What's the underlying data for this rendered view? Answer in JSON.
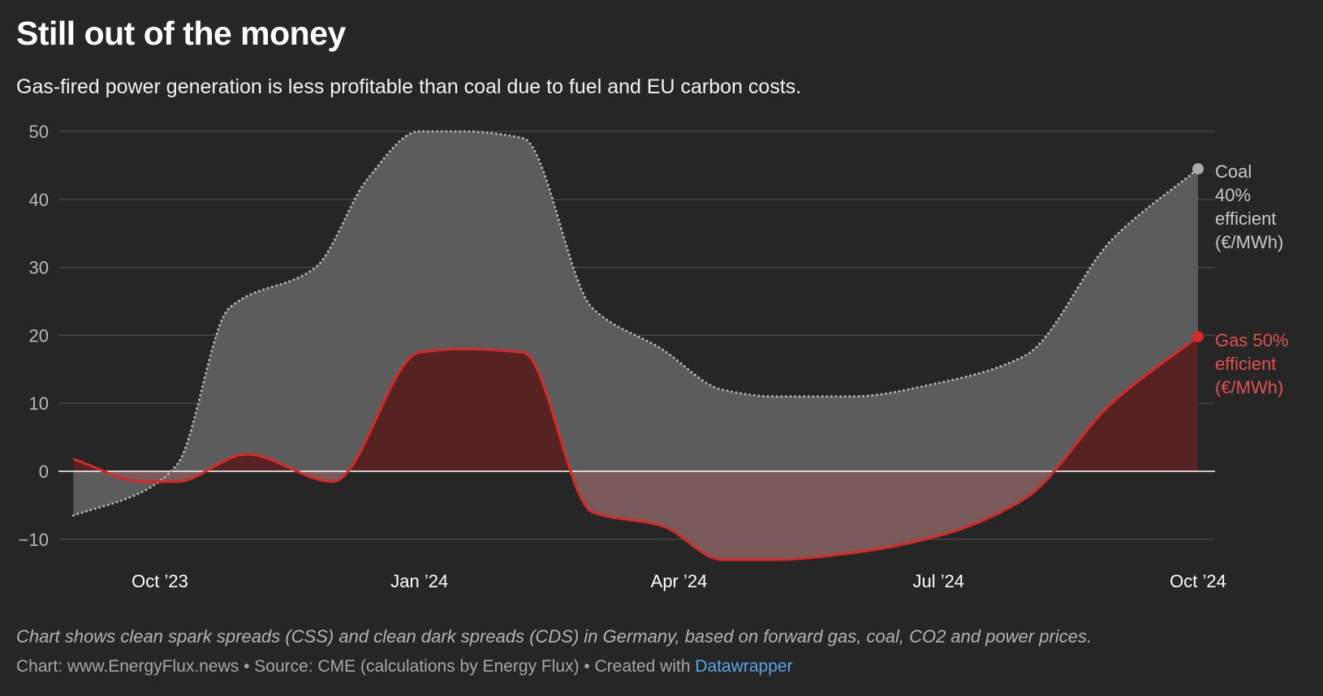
{
  "header": {
    "title": "Still out of the money",
    "subtitle": "Gas-fired power generation is less profitable than coal due to fuel and EU carbon costs."
  },
  "footer": {
    "notes": "Chart shows clean spark spreads (CSS) and clean dark spreads (CDS) in Germany, based on forward gas, coal, CO2 and power prices.",
    "byline_prefix": "Chart: www.EnergyFlux.news • Source: CME (calculations by Energy Flux) • Created with ",
    "byline_link": "Datawrapper"
  },
  "colors": {
    "background": "#262626",
    "coal_fill": "#5c5c5c",
    "coal_line": "#b0b0b0",
    "gas_line": "#d42a2a",
    "gas_fill_positive": "#562222",
    "gas_fill_negative": "#7a5a5a",
    "gas_label": "#e05050",
    "coal_label": "#c8c8c8",
    "gridline": "#4a4a4a",
    "zero_line": "#ffffff",
    "axis_text": "#b8b8b8"
  },
  "chart_data": {
    "type": "area",
    "title": "Still out of the money",
    "xlabel": "",
    "ylabel": "",
    "xlim": [
      -1,
      12.6
    ],
    "ylim": [
      -12,
      52
    ],
    "y_ticks": [
      50,
      40,
      30,
      20,
      10,
      0,
      -10
    ],
    "x_ticks": [
      {
        "value": 0,
        "label": "Oct ’23"
      },
      {
        "value": 3,
        "label": "Jan ’24"
      },
      {
        "value": 6,
        "label": "Apr ’24"
      },
      {
        "value": 9,
        "label": "Jul ’24"
      },
      {
        "value": 12,
        "label": "Oct ’24"
      }
    ],
    "grid": true,
    "legend": "direct labels right",
    "series": [
      {
        "name": "Coal 40% efficient (€/MWh)",
        "label_lines": [
          "Coal",
          "40%",
          "efficient",
          "(€/MWh)"
        ],
        "style": "dotted",
        "x": [
          -1,
          -0.2,
          0.2,
          0.8,
          1.8,
          2.4,
          3.0,
          3.5,
          4.2,
          5.0,
          5.8,
          6.5,
          7.1,
          8.0,
          9.0,
          10.0,
          11.0,
          12.0
        ],
        "values": [
          -6.5,
          -3,
          1,
          24,
          30,
          43,
          50,
          50,
          49,
          24,
          18,
          12,
          11,
          11,
          13,
          17,
          34,
          44.5
        ]
      },
      {
        "name": "Gas 50% efficient (€/MWh)",
        "label_lines": [
          "Gas 50%",
          "efficient",
          "(€/MWh)"
        ],
        "style": "solid",
        "x": [
          -1,
          -0.2,
          0.2,
          1.0,
          2.0,
          3.0,
          3.5,
          4.2,
          5.0,
          5.8,
          6.5,
          7.1,
          8.0,
          9.0,
          10.0,
          11.0,
          12.0
        ],
        "values": [
          1.8,
          -1.5,
          -1.5,
          2.5,
          -1.5,
          17.5,
          18,
          17.5,
          -6,
          -8,
          -13,
          -13,
          -12,
          -9.5,
          -4,
          10,
          19.8
        ]
      }
    ]
  }
}
